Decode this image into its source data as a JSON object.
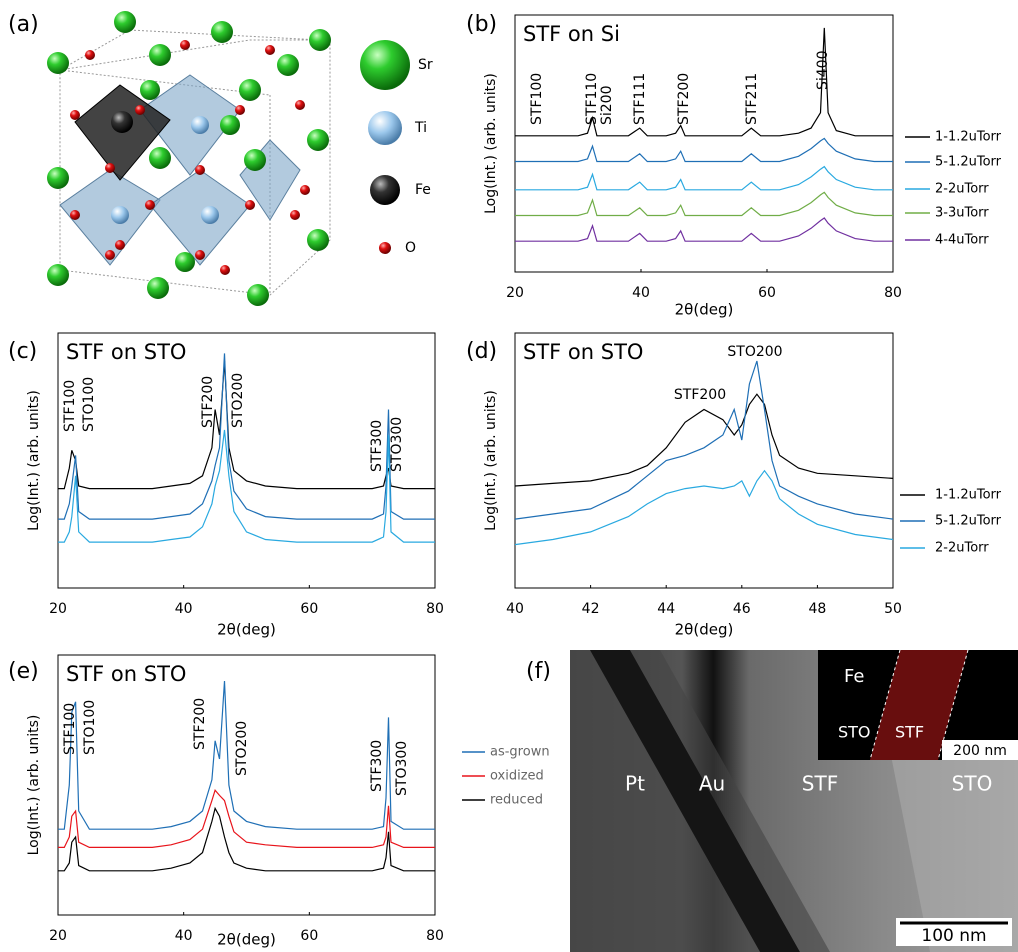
{
  "panel_labels": [
    "(a)",
    "(b)",
    "(c)",
    "(d)",
    "(e)",
    "(f)"
  ],
  "structure_legend": [
    "Sr",
    "Ti",
    "Fe",
    "O"
  ],
  "chart_data": [
    {
      "type": "line",
      "title": "STF on Si",
      "x_label": "2θ(deg)",
      "y_label": "Log(Int.) (arb. units)",
      "annotations": [
        "STF100",
        "STF110",
        "Si200",
        "STF111",
        "STF200",
        "STF211",
        "Si400"
      ],
      "xlim": [
        20,
        80
      ],
      "xticks": [
        20,
        40,
        60,
        80
      ],
      "ylim": [
        0,
        100
      ],
      "x": [
        20,
        22,
        24,
        26,
        28,
        30,
        31.5,
        32.3,
        33,
        35,
        38,
        39.8,
        41,
        44,
        45.5,
        46.3,
        47,
        50,
        53,
        56,
        57.5,
        59,
        62,
        65,
        67,
        68.5,
        69.1,
        69.7,
        71,
        74,
        77,
        80
      ],
      "series": [
        {
          "name": "1-1.2uTorr",
          "color": "#000000",
          "values": [
            53,
            53,
            53,
            53,
            53,
            53,
            54,
            60,
            53,
            53,
            53,
            56,
            53,
            53,
            54,
            57,
            53,
            53,
            53,
            53,
            56,
            53,
            53,
            54,
            56,
            62,
            95,
            62,
            55,
            53,
            53,
            53
          ]
        },
        {
          "name": "5-1.2uTorr",
          "color": "#1f6fb5",
          "values": [
            43,
            43,
            43,
            43,
            43,
            43,
            44,
            49,
            43,
            43,
            43,
            46,
            43,
            43,
            44,
            47,
            43,
            43,
            43,
            43,
            46,
            43,
            43,
            45,
            48,
            51,
            52,
            50,
            47,
            44,
            43,
            43
          ]
        },
        {
          "name": "2-2uTorr",
          "color": "#29a9e0",
          "values": [
            32,
            32,
            32,
            32,
            32,
            32,
            33,
            38,
            32,
            32,
            32,
            35,
            32,
            32,
            33,
            36,
            32,
            32,
            32,
            32,
            35,
            32,
            32,
            34,
            37,
            40,
            41,
            39,
            36,
            33,
            32,
            32
          ]
        },
        {
          "name": "3-3uTorr",
          "color": "#70ad47",
          "values": [
            22,
            22,
            22,
            22,
            22,
            22,
            23,
            28,
            22,
            22,
            22,
            25,
            22,
            22,
            23,
            26,
            22,
            22,
            22,
            22,
            25,
            22,
            22,
            24,
            27,
            30,
            31,
            29,
            26,
            23,
            22,
            22
          ]
        },
        {
          "name": "4-4uTorr",
          "color": "#7030a0",
          "values": [
            12,
            12,
            12,
            12,
            12,
            12,
            13,
            18,
            12,
            12,
            12,
            15,
            12,
            12,
            13,
            16,
            12,
            12,
            12,
            12,
            15,
            12,
            12,
            14,
            17,
            20,
            21,
            19,
            16,
            13,
            12,
            12
          ]
        }
      ]
    },
    {
      "type": "line",
      "title": "STF on STO",
      "x_label": "2θ(deg)",
      "y_label": "Log(Int.) (arb. units)",
      "annotations": [
        "STF100",
        "STO100",
        "STF200",
        "STO200",
        "STF300",
        "STO300"
      ],
      "xlim": [
        20,
        80
      ],
      "xticks": [
        20,
        40,
        60,
        80
      ],
      "ylim": [
        0,
        100
      ],
      "x": [
        20,
        21,
        21.8,
        22.2,
        22.8,
        23.3,
        25,
        30,
        35,
        38,
        41,
        43,
        44.5,
        45,
        45.7,
        46.5,
        47.2,
        48,
        50,
        53,
        58,
        63,
        68,
        70,
        71.8,
        72.2,
        72.6,
        73,
        75,
        78,
        80
      ],
      "series": [
        {
          "name": "1-1.2uTorr",
          "color": "#000000",
          "values": [
            39,
            39,
            47,
            54,
            50,
            40,
            39,
            39,
            39,
            40,
            41,
            44,
            55,
            70,
            60,
            89,
            55,
            46,
            42,
            40,
            39,
            39,
            39,
            39,
            40,
            44,
            47,
            40,
            39,
            39,
            39
          ]
        },
        {
          "name": "5-1.2uTorr",
          "color": "#1f6fb5",
          "values": [
            27,
            27,
            33,
            40,
            52,
            30,
            27,
            27,
            27,
            28,
            29,
            33,
            42,
            48,
            55,
            92,
            50,
            38,
            31,
            28,
            27,
            27,
            27,
            27,
            29,
            40,
            70,
            30,
            27,
            27,
            27
          ]
        },
        {
          "name": "2-2uTorr",
          "color": "#29a9e0",
          "values": [
            18,
            18,
            22,
            28,
            44,
            22,
            18,
            18,
            18,
            19,
            20,
            24,
            33,
            40,
            46,
            62,
            44,
            30,
            22,
            19,
            18,
            18,
            18,
            18,
            20,
            30,
            60,
            22,
            18,
            18,
            18
          ]
        }
      ]
    },
    {
      "type": "line",
      "title": "STF on STO",
      "x_label": "2θ(deg)",
      "y_label": "Log(Int.) (arb. units)",
      "annotations": [
        "STF200",
        "STO200"
      ],
      "xlim": [
        40,
        50
      ],
      "xticks": [
        40,
        42,
        44,
        46,
        48,
        50
      ],
      "ylim": [
        0,
        100
      ],
      "x": [
        40,
        41,
        42,
        43,
        43.5,
        44,
        44.5,
        45,
        45.5,
        45.8,
        46,
        46.2,
        46.4,
        46.6,
        46.8,
        47,
        47.5,
        48,
        49,
        50
      ],
      "series": [
        {
          "name": "1-1.2uTorr",
          "color": "#000000",
          "values": [
            40,
            41,
            42,
            45,
            48,
            55,
            65,
            70,
            66,
            60,
            64,
            72,
            76,
            72,
            60,
            52,
            47,
            45,
            44,
            43
          ]
        },
        {
          "name": "5-1.2uTorr",
          "color": "#1f6fb5",
          "values": [
            27,
            29,
            31,
            38,
            44,
            50,
            52,
            55,
            60,
            70,
            58,
            80,
            89,
            70,
            50,
            40,
            36,
            33,
            29,
            27
          ]
        },
        {
          "name": "2-2uTorr",
          "color": "#29a9e0",
          "values": [
            17,
            19,
            22,
            28,
            33,
            37,
            39,
            40,
            39,
            40,
            42,
            36,
            42,
            46,
            42,
            35,
            29,
            25,
            21,
            19
          ]
        }
      ]
    },
    {
      "type": "line",
      "title": "STF on STO",
      "x_label": "2θ(deg)",
      "y_label": "Log(Int.) (arb. units)",
      "annotations": [
        "STF100",
        "STO100",
        "STF200",
        "STO200",
        "STF300",
        "STO300"
      ],
      "xlim": [
        20,
        80
      ],
      "xticks": [
        20,
        40,
        60,
        80
      ],
      "ylim": [
        0,
        100
      ],
      "x": [
        20,
        21,
        21.8,
        22.2,
        22.8,
        23.3,
        25,
        30,
        35,
        38,
        41,
        43,
        44.5,
        45,
        45.7,
        46.5,
        47.2,
        48,
        50,
        53,
        58,
        63,
        68,
        70,
        71.8,
        72.2,
        72.6,
        73,
        75,
        78,
        80
      ],
      "series": [
        {
          "name": "as-grown",
          "color": "#1f6fb5",
          "values": [
            33,
            33,
            50,
            78,
            82,
            40,
            33,
            33,
            33,
            34,
            36,
            40,
            52,
            67,
            60,
            90,
            50,
            40,
            36,
            34,
            33,
            33,
            33,
            33,
            34,
            45,
            76,
            36,
            33,
            33,
            33
          ]
        },
        {
          "name": "oxidized",
          "color": "#e8141b",
          "values": [
            26,
            26,
            30,
            38,
            40,
            28,
            26,
            26,
            26,
            27,
            29,
            33,
            44,
            48,
            46,
            44,
            38,
            32,
            28,
            27,
            26,
            26,
            26,
            26,
            27,
            30,
            42,
            28,
            26,
            26,
            26
          ]
        },
        {
          "name": "reduced",
          "color": "#000000",
          "values": [
            17,
            17,
            20,
            28,
            30,
            19,
            17,
            17,
            17,
            18,
            20,
            24,
            36,
            41,
            38,
            30,
            24,
            20,
            18,
            17,
            17,
            17,
            17,
            17,
            18,
            22,
            32,
            19,
            17,
            17,
            17
          ]
        }
      ]
    }
  ],
  "tem": {
    "labels": [
      "Pt",
      "Au",
      "STF",
      "STO"
    ],
    "scale_bar": "100 nm",
    "inset": {
      "element": "Fe",
      "labels": [
        "STO",
        "STF"
      ],
      "scale_bar": "200 nm"
    }
  }
}
